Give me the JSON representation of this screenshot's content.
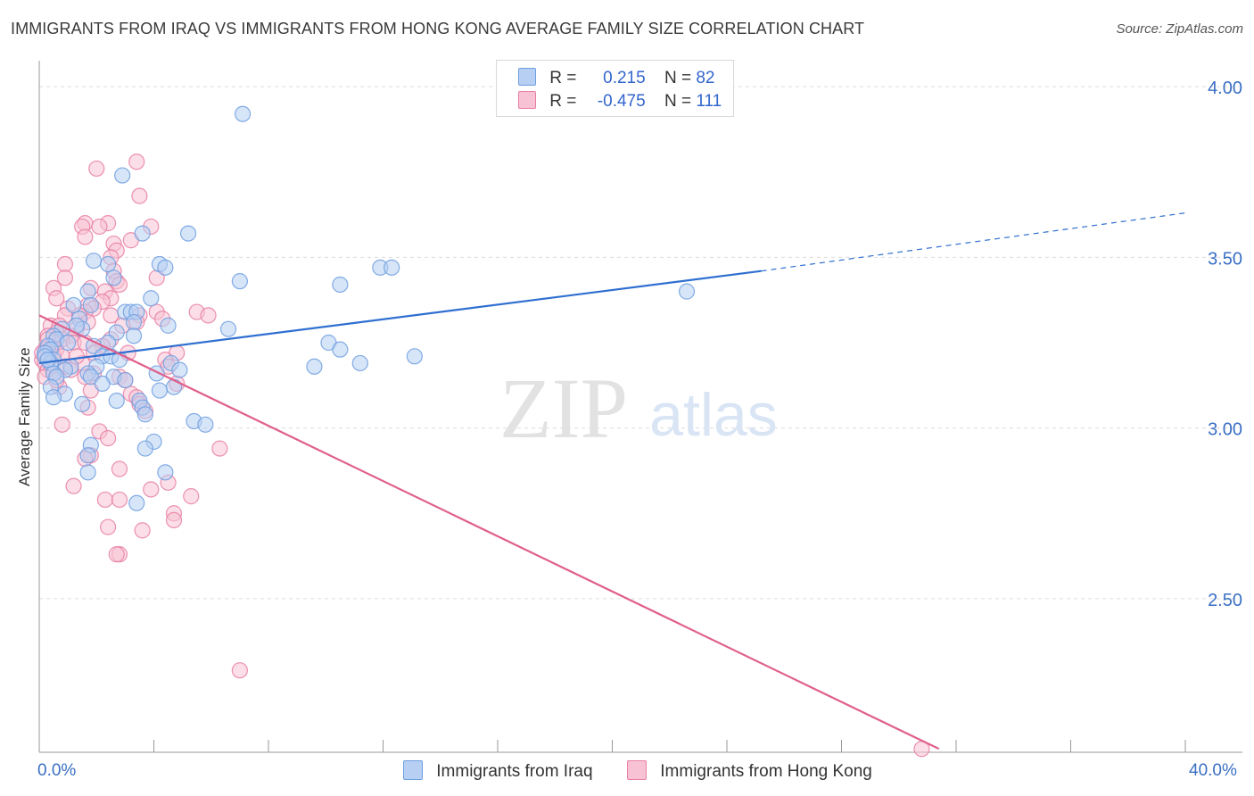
{
  "title": "IMMIGRANTS FROM IRAQ VS IMMIGRANTS FROM HONG KONG AVERAGE FAMILY SIZE CORRELATION CHART",
  "source": "Source: ZipAtlas.com",
  "watermark": {
    "zip": "ZIP",
    "atlas": "atlas"
  },
  "legend": {
    "iraq": {
      "r_label": "R =",
      "r_value": "0.215",
      "n_label": "N =",
      "n_value": "82"
    },
    "hongkong": {
      "r_label": "R =",
      "r_value": "-0.475",
      "n_label": "N =",
      "n_value": "111"
    }
  },
  "chart_data": {
    "type": "scatter",
    "title": "IMMIGRANTS FROM IRAQ VS IMMIGRANTS FROM HONG KONG AVERAGE FAMILY SIZE CORRELATION CHART",
    "xlabel": "",
    "ylabel": "Average Family Size",
    "xlim": [
      0,
      40
    ],
    "ylim": [
      2.05,
      4.05
    ],
    "x_tick_labels": [
      "0.0%",
      "40.0%"
    ],
    "y_ticks": [
      2.5,
      3.0,
      3.5,
      4.0
    ],
    "y_tick_labels": [
      "2.50",
      "3.00",
      "3.50",
      "4.00"
    ],
    "series": [
      {
        "name": "Immigrants from Iraq",
        "color": "#6f9fe0",
        "fill": "#b7cff2",
        "points": [
          [
            7.1,
            3.92
          ],
          [
            2.9,
            3.74
          ],
          [
            3.6,
            3.57
          ],
          [
            5.2,
            3.57
          ],
          [
            1.9,
            3.49
          ],
          [
            2.4,
            3.48
          ],
          [
            4.2,
            3.48
          ],
          [
            4.4,
            3.47
          ],
          [
            11.9,
            3.47
          ],
          [
            12.3,
            3.47
          ],
          [
            2.6,
            3.44
          ],
          [
            7.0,
            3.43
          ],
          [
            10.5,
            3.42
          ],
          [
            22.6,
            3.4
          ],
          [
            1.7,
            3.4
          ],
          [
            3.9,
            3.38
          ],
          [
            1.2,
            3.36
          ],
          [
            1.8,
            3.36
          ],
          [
            3.0,
            3.34
          ],
          [
            3.2,
            3.34
          ],
          [
            3.4,
            3.34
          ],
          [
            1.4,
            3.32
          ],
          [
            3.3,
            3.31
          ],
          [
            4.5,
            3.3
          ],
          [
            0.8,
            3.29
          ],
          [
            1.5,
            3.29
          ],
          [
            6.6,
            3.29
          ],
          [
            2.7,
            3.28
          ],
          [
            0.5,
            3.27
          ],
          [
            3.3,
            3.27
          ],
          [
            0.6,
            3.26
          ],
          [
            1.0,
            3.25
          ],
          [
            2.4,
            3.25
          ],
          [
            10.1,
            3.25
          ],
          [
            0.3,
            3.24
          ],
          [
            1.9,
            3.24
          ],
          [
            0.4,
            3.23
          ],
          [
            10.5,
            3.23
          ],
          [
            0.2,
            3.22
          ],
          [
            2.2,
            3.21
          ],
          [
            2.5,
            3.21
          ],
          [
            13.1,
            3.21
          ],
          [
            0.5,
            3.2
          ],
          [
            2.8,
            3.2
          ],
          [
            0.4,
            3.19
          ],
          [
            11.2,
            3.19
          ],
          [
            4.6,
            3.19
          ],
          [
            1.1,
            3.18
          ],
          [
            2.0,
            3.18
          ],
          [
            9.6,
            3.18
          ],
          [
            0.9,
            3.17
          ],
          [
            4.9,
            3.17
          ],
          [
            0.5,
            3.16
          ],
          [
            1.7,
            3.16
          ],
          [
            4.1,
            3.16
          ],
          [
            0.6,
            3.15
          ],
          [
            1.8,
            3.15
          ],
          [
            2.6,
            3.15
          ],
          [
            3.0,
            3.14
          ],
          [
            2.2,
            3.13
          ],
          [
            4.7,
            3.12
          ],
          [
            0.4,
            3.12
          ],
          [
            4.2,
            3.11
          ],
          [
            0.9,
            3.1
          ],
          [
            0.5,
            3.09
          ],
          [
            2.7,
            3.08
          ],
          [
            3.5,
            3.08
          ],
          [
            1.5,
            3.07
          ],
          [
            3.6,
            3.06
          ],
          [
            3.7,
            3.04
          ],
          [
            5.4,
            3.02
          ],
          [
            5.8,
            3.01
          ],
          [
            4.0,
            2.96
          ],
          [
            1.8,
            2.95
          ],
          [
            3.7,
            2.94
          ],
          [
            1.7,
            2.92
          ],
          [
            4.4,
            2.87
          ],
          [
            1.7,
            2.87
          ],
          [
            3.4,
            2.78
          ],
          [
            0.2,
            3.21
          ],
          [
            0.3,
            3.2
          ],
          [
            1.3,
            3.3
          ]
        ]
      },
      {
        "name": "Immigrants from Hong Kong",
        "color": "#e87fa5",
        "fill": "#f7c2d4",
        "points": [
          [
            3.4,
            3.78
          ],
          [
            2.0,
            3.76
          ],
          [
            3.5,
            3.68
          ],
          [
            1.6,
            3.6
          ],
          [
            2.4,
            3.6
          ],
          [
            3.9,
            3.59
          ],
          [
            1.5,
            3.59
          ],
          [
            2.1,
            3.59
          ],
          [
            1.6,
            3.56
          ],
          [
            3.2,
            3.55
          ],
          [
            2.6,
            3.54
          ],
          [
            2.7,
            3.52
          ],
          [
            2.5,
            3.5
          ],
          [
            0.9,
            3.48
          ],
          [
            2.6,
            3.46
          ],
          [
            4.1,
            3.44
          ],
          [
            0.9,
            3.44
          ],
          [
            2.7,
            3.43
          ],
          [
            2.8,
            3.42
          ],
          [
            1.8,
            3.41
          ],
          [
            0.5,
            3.41
          ],
          [
            2.3,
            3.4
          ],
          [
            0.6,
            3.38
          ],
          [
            2.5,
            3.38
          ],
          [
            2.2,
            3.37
          ],
          [
            1.7,
            3.36
          ],
          [
            1.9,
            3.35
          ],
          [
            1.0,
            3.35
          ],
          [
            4.1,
            3.34
          ],
          [
            5.5,
            3.34
          ],
          [
            1.6,
            3.34
          ],
          [
            0.9,
            3.33
          ],
          [
            3.5,
            3.33
          ],
          [
            5.9,
            3.33
          ],
          [
            2.5,
            3.33
          ],
          [
            1.4,
            3.33
          ],
          [
            4.3,
            3.32
          ],
          [
            3.4,
            3.31
          ],
          [
            1.7,
            3.31
          ],
          [
            2.9,
            3.3
          ],
          [
            0.4,
            3.3
          ],
          [
            0.7,
            3.3
          ],
          [
            1.3,
            3.29
          ],
          [
            0.6,
            3.28
          ],
          [
            0.3,
            3.27
          ],
          [
            1.1,
            3.27
          ],
          [
            2.5,
            3.26
          ],
          [
            0.8,
            3.26
          ],
          [
            0.5,
            3.25
          ],
          [
            1.2,
            3.25
          ],
          [
            1.6,
            3.25
          ],
          [
            0.4,
            3.24
          ],
          [
            2.2,
            3.24
          ],
          [
            0.2,
            3.23
          ],
          [
            0.6,
            3.23
          ],
          [
            1.9,
            3.22
          ],
          [
            0.3,
            3.22
          ],
          [
            3.1,
            3.22
          ],
          [
            4.8,
            3.22
          ],
          [
            0.2,
            3.21
          ],
          [
            0.5,
            3.21
          ],
          [
            0.8,
            3.21
          ],
          [
            0.1,
            3.2
          ],
          [
            0.3,
            3.2
          ],
          [
            4.4,
            3.2
          ],
          [
            0.2,
            3.19
          ],
          [
            1.5,
            3.19
          ],
          [
            0.4,
            3.18
          ],
          [
            0.9,
            3.18
          ],
          [
            4.5,
            3.18
          ],
          [
            0.3,
            3.17
          ],
          [
            1.1,
            3.17
          ],
          [
            0.5,
            3.16
          ],
          [
            1.9,
            3.16
          ],
          [
            2.8,
            3.15
          ],
          [
            0.2,
            3.15
          ],
          [
            1.6,
            3.15
          ],
          [
            3.0,
            3.14
          ],
          [
            4.8,
            3.13
          ],
          [
            0.7,
            3.12
          ],
          [
            1.8,
            3.11
          ],
          [
            3.2,
            3.1
          ],
          [
            3.4,
            3.09
          ],
          [
            3.5,
            3.07
          ],
          [
            1.7,
            3.06
          ],
          [
            3.7,
            3.05
          ],
          [
            0.8,
            3.01
          ],
          [
            2.1,
            2.99
          ],
          [
            2.4,
            2.97
          ],
          [
            6.3,
            2.94
          ],
          [
            1.8,
            2.92
          ],
          [
            1.6,
            2.91
          ],
          [
            2.8,
            2.88
          ],
          [
            4.5,
            2.84
          ],
          [
            1.2,
            2.83
          ],
          [
            3.9,
            2.82
          ],
          [
            5.3,
            2.8
          ],
          [
            2.3,
            2.79
          ],
          [
            2.8,
            2.79
          ],
          [
            4.7,
            2.75
          ],
          [
            4.7,
            2.73
          ],
          [
            2.4,
            2.71
          ],
          [
            3.6,
            2.7
          ],
          [
            2.8,
            2.63
          ],
          [
            2.7,
            2.63
          ],
          [
            7.0,
            2.29
          ],
          [
            30.8,
            2.06
          ],
          [
            0.3,
            3.26
          ],
          [
            0.1,
            3.22
          ],
          [
            1.3,
            3.21
          ],
          [
            0.6,
            3.14
          ]
        ]
      }
    ],
    "trend_lines": [
      {
        "series": "Immigrants from Iraq",
        "x_start": 0,
        "y_start": 3.19,
        "x_solid_end": 25.2,
        "y_solid_end": 3.46,
        "x_end": 40,
        "y_end": 3.63
      },
      {
        "series": "Immigrants from Hong Kong",
        "x_start": 0,
        "y_start": 3.33,
        "x_end": 31.4,
        "y_end": 2.06
      }
    ],
    "grid": true,
    "legend_position": "top-center"
  }
}
